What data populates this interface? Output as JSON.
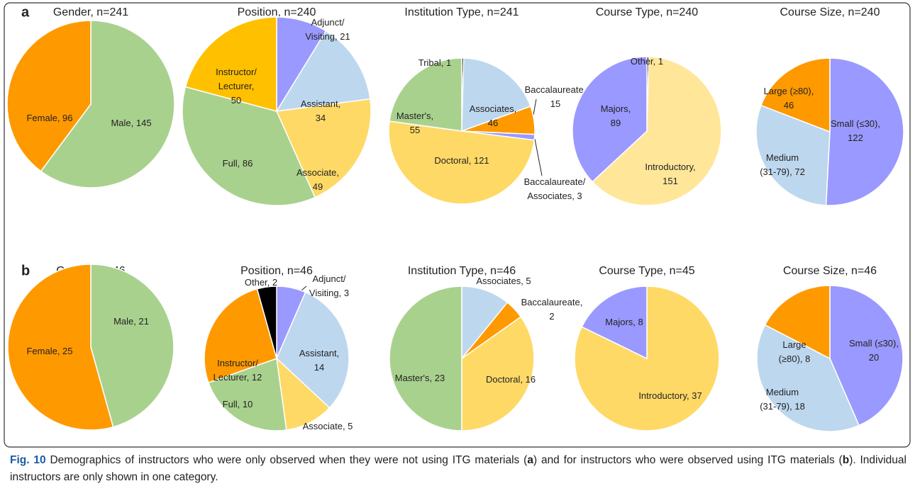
{
  "panels": [
    "a",
    "b"
  ],
  "caption": [
    {
      "text": "Fig. 10",
      "bold": true
    },
    {
      "text": " Demographics of instructors who were only observed when they were not using ITG materials (",
      "bold": false
    },
    {
      "text": "a",
      "bold": true
    },
    {
      "text": ") and for instructors who were observed using ITG materials (",
      "bold": false
    },
    {
      "text": "b",
      "bold": true
    },
    {
      "text": "). Individual instructors are only shown in one category.",
      "bold": false
    }
  ],
  "chart_data": [
    {
      "type": "pie",
      "title": "Gender, n=241",
      "values": [
        145,
        96
      ],
      "colors": [
        "#a9d18e",
        "#ff9900"
      ],
      "value_labels": [
        [
          "Male, 145"
        ],
        [
          "Female, 96"
        ]
      ]
    },
    {
      "type": "pie",
      "title": "Position, n=240",
      "values": [
        21,
        34,
        49,
        86,
        50
      ],
      "colors": [
        "#9999ff",
        "#bdd7ee",
        "#ffd966",
        "#a9d18e",
        "#ffc000"
      ],
      "value_labels": [
        [
          "Adjunct/",
          "Visiting, 21"
        ],
        [
          "Assistant,",
          "34"
        ],
        [
          "Associate,",
          "49"
        ],
        [
          "Full, 86"
        ],
        [
          "Instructor/",
          "Lecturer,",
          "50"
        ]
      ]
    },
    {
      "type": "pie",
      "title": "Institution Type, n=241",
      "values": [
        1,
        46,
        15,
        3,
        121,
        55
      ],
      "colors": [
        "#000000",
        "#bdd7ee",
        "#ff9900",
        "#9999ff",
        "#ffd966",
        "#a9d18e"
      ],
      "value_labels": [
        [
          "Tribal, 1"
        ],
        [
          "Associates,",
          "46"
        ],
        [
          "Baccalaureate,",
          "15"
        ],
        [
          "Baccalaureate/",
          "Associates, 3"
        ],
        [
          "Doctoral, 121"
        ],
        [
          "Master's,",
          "55"
        ]
      ]
    },
    {
      "type": "pie",
      "title": "Course Type, n=240",
      "values": [
        1,
        151,
        89
      ],
      "colors": [
        "#000000",
        "#ffe699",
        "#9999ff"
      ],
      "value_labels": [
        [
          "Other, 1"
        ],
        [
          "Introductory,",
          "151"
        ],
        [
          "Majors,",
          "89"
        ]
      ]
    },
    {
      "type": "pie",
      "title": "Course Size, n=240",
      "values": [
        122,
        72,
        46
      ],
      "colors": [
        "#9999ff",
        "#bdd7ee",
        "#ff9900"
      ],
      "value_labels": [
        [
          "Small (≤30),",
          "122"
        ],
        [
          "Medium",
          "(31-79), 72"
        ],
        [
          "Large (≥80),",
          "46"
        ]
      ]
    },
    {
      "type": "pie",
      "title": "Gender, n=46",
      "values": [
        21,
        25
      ],
      "colors": [
        "#a9d18e",
        "#ff9900"
      ],
      "value_labels": [
        [
          "Male, 21"
        ],
        [
          "Female, 25"
        ]
      ]
    },
    {
      "type": "pie",
      "title": "Position, n=46",
      "values": [
        3,
        14,
        5,
        10,
        12,
        2
      ],
      "colors": [
        "#9999ff",
        "#bdd7ee",
        "#ffd966",
        "#a9d18e",
        "#ff9900",
        "#000000"
      ],
      "value_labels": [
        [
          "Adjunct/",
          "Visiting, 3"
        ],
        [
          "Assistant,",
          "14"
        ],
        [
          "Associate, 5"
        ],
        [
          "Full, 10"
        ],
        [
          "Instructor/",
          "Lecturer, 12"
        ],
        [
          "Other, 2"
        ]
      ]
    },
    {
      "type": "pie",
      "title": "Institution Type, n=46",
      "values": [
        5,
        2,
        16,
        23
      ],
      "colors": [
        "#bdd7ee",
        "#ff9900",
        "#ffd966",
        "#a9d18e"
      ],
      "value_labels": [
        [
          "Associates, 5"
        ],
        [
          "Baccalaureate,",
          "2"
        ],
        [
          "Doctoral, 16"
        ],
        [
          "Master's, 23"
        ]
      ]
    },
    {
      "type": "pie",
      "title": "Course Type, n=45",
      "values": [
        37,
        8
      ],
      "colors": [
        "#ffd966",
        "#9999ff"
      ],
      "value_labels": [
        [
          "Introductory, 37"
        ],
        [
          "Majors, 8"
        ]
      ]
    },
    {
      "type": "pie",
      "title": "Course Size, n=46",
      "values": [
        20,
        18,
        8
      ],
      "colors": [
        "#9999ff",
        "#bdd7ee",
        "#ff9900"
      ],
      "value_labels": [
        [
          "Small (≤30),",
          "20"
        ],
        [
          "Medium",
          "(31-79), 18"
        ],
        [
          "Large",
          "(≥80), 8"
        ]
      ]
    }
  ]
}
